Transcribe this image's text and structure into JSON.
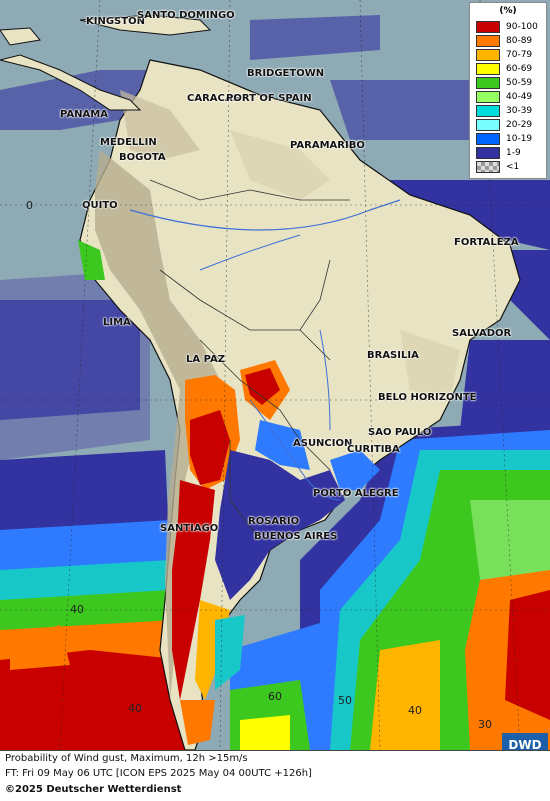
{
  "legend": {
    "title": "(%)",
    "entries": [
      {
        "label": "90-100",
        "color": "#c80000"
      },
      {
        "label": "80-89",
        "color": "#ff7800"
      },
      {
        "label": "70-79",
        "color": "#ffb400"
      },
      {
        "label": "60-69",
        "color": "#ffff00"
      },
      {
        "label": "50-59",
        "color": "#3cc81e"
      },
      {
        "label": "40-49",
        "color": "#96ff64"
      },
      {
        "label": "30-39",
        "color": "#00dcdc"
      },
      {
        "label": "20-29",
        "color": "#78ffff"
      },
      {
        "label": "10-19",
        "color": "#0064ff"
      },
      {
        "label": "1-9",
        "color": "#3232a0"
      },
      {
        "label": "<1",
        "color": "checker"
      }
    ]
  },
  "cities": [
    "KINGSTON",
    "SANTO DOMINGO",
    "BRIDGETOWN",
    "CARACAS",
    "PORT OF SPAIN",
    "PANAMA",
    "MEDELLIN",
    "BOGOTA",
    "PARAMARIBO",
    "QUITO",
    "FORTALEZA",
    "LIMA",
    "SALVADOR",
    "BRASILIA",
    "LA PAZ",
    "BELO HORIZONTE",
    "SAO PAULO",
    "ASUNCION",
    "CURITIBA",
    "PORTO ALEGRE",
    "ROSARIO",
    "SANTIAGO",
    "BUENOS AIRES"
  ],
  "grid_labels": [
    "0",
    "40",
    "40",
    "40",
    "50",
    "60",
    "30"
  ],
  "footer": {
    "line1": "Probability of Wind gust, Maximum, 12h >15m/s",
    "line2": "FT: Fri 09 May 06 UTC [ICON EPS 2025 May 04 00UTC +126h]",
    "line3": "©2025 Deutscher Wetterdienst"
  },
  "logo": {
    "text": "DWD"
  }
}
